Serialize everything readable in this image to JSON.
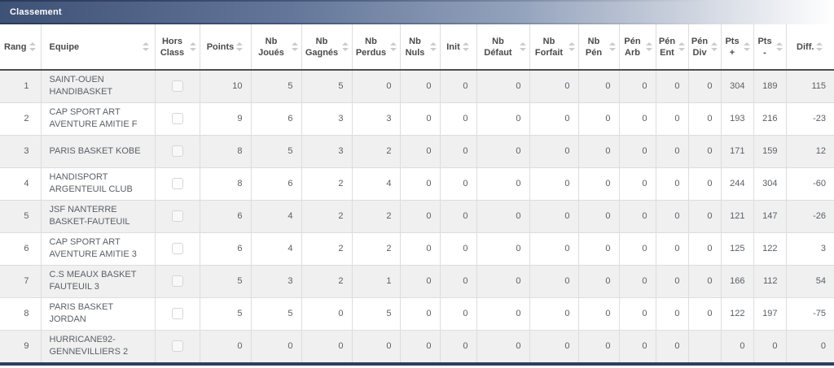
{
  "panel": {
    "title": "Classement"
  },
  "colors": {
    "header_gradient_start": "#3e5176",
    "header_gradient_end": "#ffffff",
    "stripe_row": "#f0f0f0",
    "cell_border": "#dddddd",
    "header_bottom_border": "#4d4d4d",
    "sort_icon": "#c9ccd1",
    "bottom_bar": "#2d3d5c"
  },
  "table": {
    "columns": [
      {
        "id": "rang",
        "label": "Rang",
        "sortable": true
      },
      {
        "id": "equipe",
        "label": "Equipe",
        "sortable": true
      },
      {
        "id": "hors_class",
        "label": "Hors Class",
        "sortable": true
      },
      {
        "id": "points",
        "label": "Points",
        "sortable": true
      },
      {
        "id": "nb_joues",
        "label": "Nb Joués",
        "sortable": true
      },
      {
        "id": "nb_gagnes",
        "label": "Nb Gagnés",
        "sortable": true
      },
      {
        "id": "nb_perdus",
        "label": "Nb Perdus",
        "sortable": true
      },
      {
        "id": "nb_nuls",
        "label": "Nb Nuls",
        "sortable": true
      },
      {
        "id": "init",
        "label": "Init",
        "sortable": true
      },
      {
        "id": "nb_defaut",
        "label": "Nb Défaut",
        "sortable": true
      },
      {
        "id": "nb_forfait",
        "label": "Nb Forfait",
        "sortable": true
      },
      {
        "id": "nb_pen",
        "label": "Nb Pén",
        "sortable": true
      },
      {
        "id": "pen_arb",
        "label": "Pén Arb",
        "sortable": true
      },
      {
        "id": "pen_ent",
        "label": "Pén Ent",
        "sortable": true
      },
      {
        "id": "pen_div",
        "label": "Pén Div",
        "sortable": true
      },
      {
        "id": "pts_plus",
        "label": "Pts +",
        "sortable": true
      },
      {
        "id": "pts_moins",
        "label": "Pts -",
        "sortable": true
      },
      {
        "id": "diff",
        "label": "Diff.",
        "sortable": true
      }
    ],
    "rows": [
      {
        "rang": "1",
        "equipe": "SAINT-OUEN HANDIBASKET",
        "hors_class_checked": false,
        "values": [
          "10",
          "5",
          "5",
          "0",
          "0",
          "0",
          "0",
          "0",
          "0",
          "0",
          "0",
          "0",
          "304",
          "189",
          "115"
        ]
      },
      {
        "rang": "2",
        "equipe": "CAP SPORT ART AVENTURE AMITIE F",
        "hors_class_checked": false,
        "values": [
          "9",
          "6",
          "3",
          "3",
          "0",
          "0",
          "0",
          "0",
          "0",
          "0",
          "0",
          "0",
          "193",
          "216",
          "-23"
        ]
      },
      {
        "rang": "3",
        "equipe": "PARIS BASKET KOBE",
        "hors_class_checked": false,
        "values": [
          "8",
          "5",
          "3",
          "2",
          "0",
          "0",
          "0",
          "0",
          "0",
          "0",
          "0",
          "0",
          "171",
          "159",
          "12"
        ]
      },
      {
        "rang": "4",
        "equipe": "HANDISPORT ARGENTEUIL CLUB",
        "hors_class_checked": false,
        "values": [
          "8",
          "6",
          "2",
          "4",
          "0",
          "0",
          "0",
          "0",
          "0",
          "0",
          "0",
          "0",
          "244",
          "304",
          "-60"
        ]
      },
      {
        "rang": "5",
        "equipe": "JSF NANTERRE BASKET-FAUTEUIL",
        "hors_class_checked": false,
        "values": [
          "6",
          "4",
          "2",
          "2",
          "0",
          "0",
          "0",
          "0",
          "0",
          "0",
          "0",
          "0",
          "121",
          "147",
          "-26"
        ]
      },
      {
        "rang": "6",
        "equipe": "CAP SPORT ART AVENTURE AMITIE 3",
        "hors_class_checked": false,
        "values": [
          "6",
          "4",
          "2",
          "2",
          "0",
          "0",
          "0",
          "0",
          "0",
          "0",
          "0",
          "0",
          "125",
          "122",
          "3"
        ]
      },
      {
        "rang": "7",
        "equipe": "C.S MEAUX BASKET FAUTEUIL 3",
        "hors_class_checked": false,
        "values": [
          "5",
          "3",
          "2",
          "1",
          "0",
          "0",
          "0",
          "0",
          "0",
          "0",
          "0",
          "0",
          "166",
          "112",
          "54"
        ]
      },
      {
        "rang": "8",
        "equipe": "PARIS BASKET JORDAN",
        "hors_class_checked": false,
        "values": [
          "5",
          "5",
          "0",
          "5",
          "0",
          "0",
          "0",
          "0",
          "0",
          "0",
          "0",
          "0",
          "122",
          "197",
          "-75"
        ]
      },
      {
        "rang": "9",
        "equipe": "HURRICANE92-GENNEVILLIERS 2",
        "hors_class_checked": false,
        "values": [
          "0",
          "0",
          "0",
          "0",
          "0",
          "0",
          "0",
          "0",
          "0",
          "0",
          "0",
          "",
          "0",
          "0",
          "0"
        ]
      }
    ]
  }
}
